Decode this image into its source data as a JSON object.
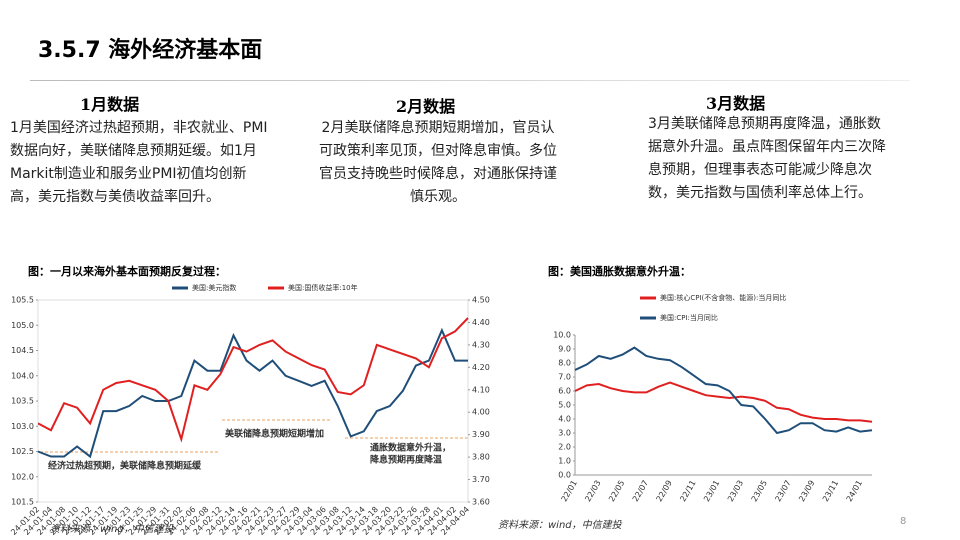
{
  "header": {
    "title": "3.5.7 海外经济基本面"
  },
  "columns": [
    {
      "heading": "1月数据",
      "text": "1月美国经济过热超预期，非农就业、PMI数据向好，美联储降息预期延缓。如1月Markit制造业和服务业PMI初值均创新高，美元指数与美债收益率回升。"
    },
    {
      "heading": "2月数据",
      "text": "2月美联储降息预期短期增加，官员认可政策利率见顶，但对降息审慎。多位官员支持晚些时候降息，对通胀保持谨慎乐观。"
    },
    {
      "heading": "3月数据",
      "text": "3月美联储降息预期再度降温，通胀数据意外升温。虽点阵图保留年内三次降息预期，但理事表态可能减少降息次数，美元指数与国债利率总体上行。"
    }
  ],
  "chart_data": [
    {
      "type": "line",
      "title": "图：一月以来海外基本面预期反复过程：",
      "annotations": [
        "经济过热超预期，美联储降息预期延缓",
        "美联储降息预期短期增加",
        "通胀数据意外升温，",
        "降息预期再度降温"
      ],
      "categories": [
        "24-01-02",
        "24-01-04",
        "24-01-08",
        "24-01-10",
        "24-01-12",
        "24-01-17",
        "24-01-19",
        "24-01-23",
        "24-01-25",
        "24-01-29",
        "24-01-31",
        "24-02-02",
        "24-02-06",
        "24-02-08",
        "24-02-12",
        "24-02-14",
        "24-02-16",
        "24-02-21",
        "24-02-23",
        "24-02-27",
        "24-02-29",
        "24-03-04",
        "24-03-06",
        "24-03-08",
        "24-03-12",
        "24-03-14",
        "24-03-18",
        "24-03-20",
        "24-03-22",
        "24-03-26",
        "24-03-28",
        "24-04-01",
        "24-04-02",
        "24-04-04"
      ],
      "series": [
        {
          "name": "美国:美元指数",
          "color": "#1f4e79",
          "values": [
            102.5,
            102.4,
            102.4,
            102.6,
            102.4,
            103.3,
            103.3,
            103.4,
            103.6,
            103.5,
            103.5,
            103.6,
            104.3,
            104.1,
            104.1,
            104.8,
            104.3,
            104.1,
            104.3,
            104.0,
            103.9,
            103.8,
            103.9,
            103.4,
            102.8,
            102.9,
            103.3,
            103.4,
            103.7,
            104.2,
            104.3,
            104.9,
            104.3,
            104.3
          ]
        },
        {
          "name": "美国:国债收益率:10年",
          "color": "#e02020",
          "axis": "y2",
          "values": [
            3.95,
            3.92,
            4.04,
            4.02,
            3.95,
            4.1,
            4.13,
            4.14,
            4.12,
            4.1,
            4.05,
            3.88,
            4.12,
            4.1,
            4.17,
            4.29,
            4.27,
            4.3,
            4.32,
            4.27,
            4.24,
            4.21,
            4.19,
            4.09,
            4.08,
            4.12,
            4.3,
            4.28,
            4.26,
            4.24,
            4.2,
            4.33,
            4.36,
            4.42
          ]
        }
      ],
      "ylim": [
        101.5,
        105.5
      ],
      "yticks": [
        101.5,
        {
          "value": 102,
          "label": "102.0"
        },
        102.5,
        {
          "value": 103,
          "label": "103.0"
        },
        103.5,
        {
          "value": 104,
          "label": "104.0"
        },
        104.5,
        {
          "value": 105,
          "label": "105.0"
        },
        105.5
      ],
      "y2lim": [
        3.6,
        4.5
      ],
      "y2ticks": [
        {
          "value": 3.6,
          "label": "3.60"
        },
        {
          "value": 3.7,
          "label": "3.70"
        },
        {
          "value": 3.8,
          "label": "3.80"
        },
        {
          "value": 3.9,
          "label": "3.90"
        },
        {
          "value": 4.0,
          "label": "4.00"
        },
        {
          "value": 4.1,
          "label": "4.10"
        },
        {
          "value": 4.2,
          "label": "4.20"
        },
        {
          "value": 4.3,
          "label": "4.30"
        },
        {
          "value": 4.4,
          "label": "4.40"
        },
        {
          "value": 4.5,
          "label": "4.50"
        }
      ],
      "grid": false,
      "source": "资料来源：wind，中信建投"
    },
    {
      "type": "line",
      "title": "图：美国通胀数据意外升温：",
      "categories": [
        "22/01",
        null,
        "22/03",
        null,
        "22/05",
        null,
        "22/07",
        null,
        "22/09",
        null,
        "22/11",
        null,
        "23/01",
        null,
        "23/03",
        null,
        "23/05",
        null,
        "23/07",
        null,
        "23/09",
        null,
        "23/11",
        null,
        "24/01",
        null
      ],
      "series": [
        {
          "name": "美国:核心CPI(不含食物、能源):当月同比",
          "color": "#e02020",
          "values": [
            6.0,
            6.4,
            6.5,
            6.2,
            6.0,
            5.9,
            5.9,
            6.3,
            6.6,
            6.3,
            6.0,
            5.7,
            5.6,
            5.5,
            5.6,
            5.5,
            5.3,
            4.8,
            4.7,
            4.3,
            4.1,
            4.0,
            4.0,
            3.9,
            3.9,
            3.8
          ]
        },
        {
          "name": "美国:CPI:当月同比",
          "color": "#1f4e79",
          "values": [
            7.5,
            7.9,
            8.5,
            8.3,
            8.6,
            9.1,
            8.5,
            8.3,
            8.2,
            7.7,
            7.1,
            6.5,
            6.4,
            6.0,
            5.0,
            4.9,
            4.0,
            3.0,
            3.2,
            3.7,
            3.7,
            3.2,
            3.1,
            3.4,
            3.1,
            3.2
          ]
        }
      ],
      "ylim": [
        0,
        10
      ],
      "yticks": [
        {
          "value": 0,
          "label": "0.0"
        },
        {
          "value": 1,
          "label": "1.0"
        },
        {
          "value": 2,
          "label": "2.0"
        },
        {
          "value": 3,
          "label": "3.0"
        },
        {
          "value": 4,
          "label": "4.0"
        },
        {
          "value": 5,
          "label": "5.0"
        },
        {
          "value": 6,
          "label": "6.0"
        },
        {
          "value": 7,
          "label": "7.0"
        },
        {
          "value": 8,
          "label": "8.0"
        },
        {
          "value": 9,
          "label": "9.0"
        },
        {
          "value": 10,
          "label": "10.0"
        }
      ],
      "grid": false,
      "source": "资料来源：wind，中信建投"
    }
  ],
  "page_number": "8"
}
